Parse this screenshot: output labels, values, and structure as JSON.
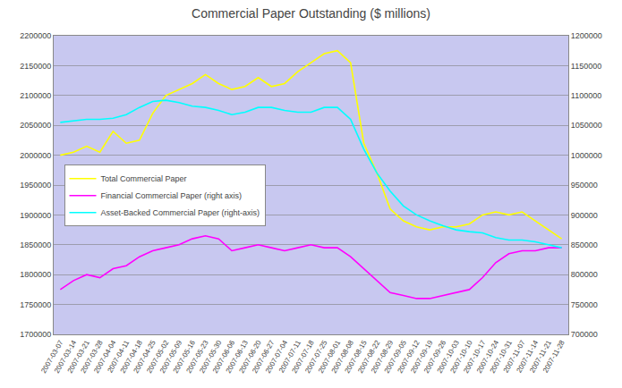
{
  "chart_data": {
    "type": "line",
    "title": "Commercial Paper Outstanding ($ millions)",
    "categories": [
      "2007-03-07",
      "2007-03-14",
      "2007-03-21",
      "2007-03-28",
      "2007-04-04",
      "2007-04-11",
      "2007-04-18",
      "2007-04-25",
      "2007-05-02",
      "2007-05-09",
      "2007-05-16",
      "2007-05-23",
      "2007-05-30",
      "2007-06-06",
      "2007-06-13",
      "2007-06-20",
      "2007-06-27",
      "2007-07-04",
      "2007-07-11",
      "2007-07-18",
      "2007-07-25",
      "2007-08-01",
      "2007-08-08",
      "2007-08-15",
      "2007-08-22",
      "2007-08-29",
      "2007-09-05",
      "2007-09-12",
      "2007-09-19",
      "2007-09-26",
      "2007-10-03",
      "2007-10-10",
      "2007-10-17",
      "2007-10-24",
      "2007-10-31",
      "2007-11-07",
      "2007-11-14",
      "2007-11-21",
      "2007-11-28"
    ],
    "series": [
      {
        "name": "Total Commercial Paper",
        "color": "#ffff00",
        "values": [
          2000000,
          2005000,
          2015000,
          2005000,
          2040000,
          2020000,
          2025000,
          2070000,
          2100000,
          2110000,
          2120000,
          2135000,
          2120000,
          2110000,
          2115000,
          2130000,
          2115000,
          2120000,
          2140000,
          2155000,
          2170000,
          2175000,
          2155000,
          2020000,
          1970000,
          1910000,
          1890000,
          1880000,
          1875000,
          1880000,
          1880000,
          1885000,
          1900000,
          1905000,
          1900000,
          1905000,
          1890000,
          1875000,
          1860000
        ]
      },
      {
        "name": "Financial Commercial Paper (right axis)",
        "color": "#ff00ff",
        "axis": "y2",
        "values": [
          775000,
          790000,
          800000,
          795000,
          810000,
          815000,
          830000,
          840000,
          845000,
          850000,
          860000,
          865000,
          860000,
          840000,
          845000,
          850000,
          845000,
          840000,
          845000,
          850000,
          845000,
          845000,
          830000,
          810000,
          790000,
          770000,
          765000,
          760000,
          760000,
          765000,
          770000,
          775000,
          795000,
          820000,
          835000,
          840000,
          840000,
          845000,
          845000
        ]
      },
      {
        "name": "Asset-Backed Commercial Paper (right-axis)",
        "color": "#00ffff",
        "axis": "y2",
        "values": [
          1055000,
          1058000,
          1060000,
          1060000,
          1062000,
          1068000,
          1080000,
          1090000,
          1092000,
          1088000,
          1082000,
          1080000,
          1075000,
          1068000,
          1072000,
          1080000,
          1080000,
          1075000,
          1072000,
          1072000,
          1080000,
          1080000,
          1060000,
          1010000,
          970000,
          940000,
          915000,
          900000,
          890000,
          882000,
          875000,
          872000,
          870000,
          862000,
          858000,
          858000,
          855000,
          850000,
          845000
        ]
      }
    ],
    "ylim": [
      1700000,
      2200000
    ],
    "yticks": [
      1700000,
      1750000,
      1800000,
      1850000,
      1900000,
      1950000,
      2000000,
      2050000,
      2100000,
      2150000,
      2200000
    ],
    "y2lim": [
      700000,
      1200000
    ],
    "y2ticks": [
      700000,
      750000,
      800000,
      850000,
      900000,
      950000,
      1000000,
      1050000,
      1100000,
      1150000,
      1200000
    ],
    "grid": true,
    "legend": "left"
  }
}
